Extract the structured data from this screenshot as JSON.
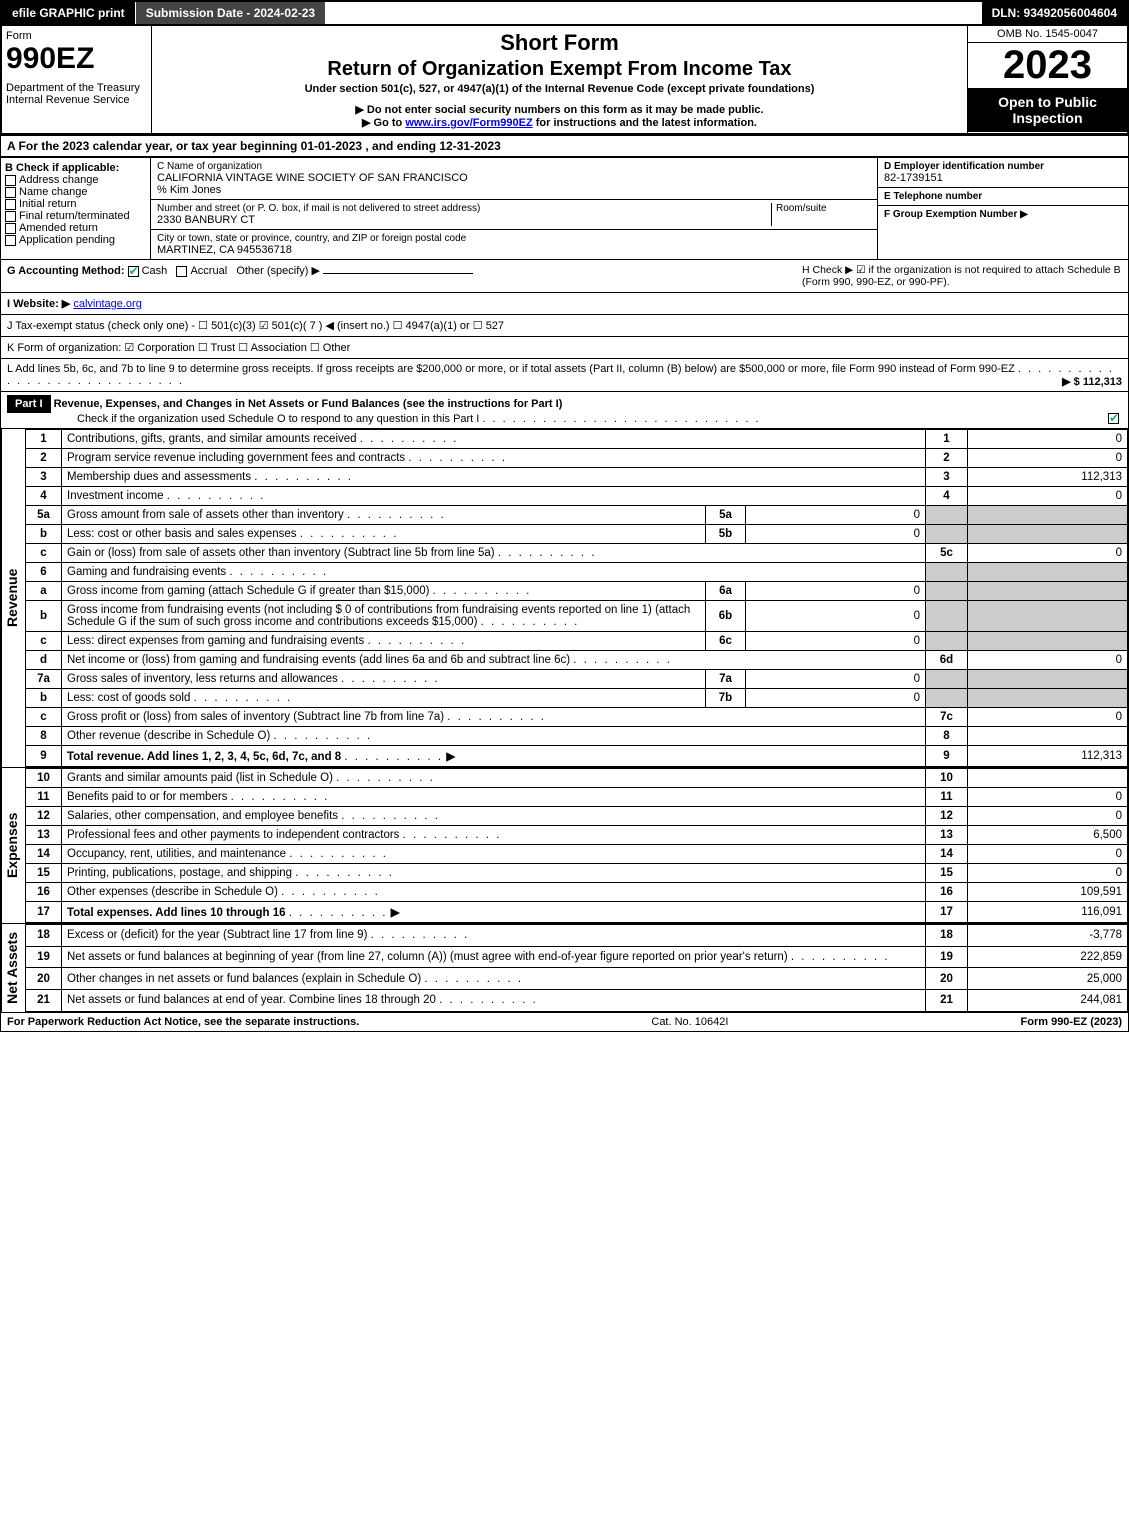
{
  "topbar": {
    "efile": "efile GRAPHIC print",
    "submission": "Submission Date - 2024-02-23",
    "dln": "DLN: 93492056004604"
  },
  "header": {
    "form_word": "Form",
    "form_num": "990EZ",
    "dept": "Department of the Treasury\nInternal Revenue Service",
    "title1": "Short Form",
    "title2": "Return of Organization Exempt From Income Tax",
    "subtitle": "Under section 501(c), 527, or 4947(a)(1) of the Internal Revenue Code (except private foundations)",
    "note1": "▶ Do not enter social security numbers on this form as it may be made public.",
    "note2_pre": "▶ Go to ",
    "note2_link": "www.irs.gov/Form990EZ",
    "note2_post": " for instructions and the latest information.",
    "omb": "OMB No. 1545-0047",
    "year": "2023",
    "open": "Open to Public Inspection"
  },
  "A": "A  For the 2023 calendar year, or tax year beginning 01-01-2023 , and ending 12-31-2023",
  "B": {
    "label": "B  Check if applicable:",
    "items": [
      "Address change",
      "Name change",
      "Initial return",
      "Final return/terminated",
      "Amended return",
      "Application pending"
    ]
  },
  "C": {
    "label": "C Name of organization",
    "name": "CALIFORNIA VINTAGE WINE SOCIETY OF SAN FRANCISCO",
    "care_of": "% Kim Jones",
    "street_label": "Number and street (or P. O. box, if mail is not delivered to street address)",
    "room_label": "Room/suite",
    "street": "2330 BANBURY CT",
    "city_label": "City or town, state or province, country, and ZIP or foreign postal code",
    "city": "MARTINEZ, CA  945536718"
  },
  "D": {
    "label": "D Employer identification number",
    "value": "82-1739151"
  },
  "E": {
    "label": "E Telephone number",
    "value": ""
  },
  "F": {
    "label": "F Group Exemption Number  ▶",
    "value": ""
  },
  "G": {
    "label": "G Accounting Method:",
    "cash": "Cash",
    "accrual": "Accrual",
    "other": "Other (specify) ▶"
  },
  "H": {
    "text": "H  Check ▶  ☑  if the organization is not required to attach Schedule B (Form 990, 990-EZ, or 990-PF)."
  },
  "I": {
    "label": "I Website: ▶",
    "value": "calvintage.org"
  },
  "J": "J Tax-exempt status (check only one) -  ☐ 501(c)(3)  ☑ 501(c)( 7 ) ◀ (insert no.)  ☐ 4947(a)(1) or  ☐ 527",
  "K": "K Form of organization:  ☑ Corporation  ☐ Trust  ☐ Association  ☐ Other",
  "L": {
    "text": "L Add lines 5b, 6c, and 7b to line 9 to determine gross receipts. If gross receipts are $200,000 or more, or if total assets (Part II, column (B) below) are $500,000 or more, file Form 990 instead of Form 990-EZ",
    "amount": "▶ $ 112,313"
  },
  "partI": {
    "label": "Part I",
    "title": "Revenue, Expenses, and Changes in Net Assets or Fund Balances (see the instructions for Part I)",
    "check_line": "Check if the organization used Schedule O to respond to any question in this Part I"
  },
  "revenue": {
    "side": "Revenue",
    "lines": [
      {
        "n": "1",
        "desc": "Contributions, gifts, grants, and similar amounts received",
        "col": "1",
        "val": "0"
      },
      {
        "n": "2",
        "desc": "Program service revenue including government fees and contracts",
        "col": "2",
        "val": "0"
      },
      {
        "n": "3",
        "desc": "Membership dues and assessments",
        "col": "3",
        "val": "112,313"
      },
      {
        "n": "4",
        "desc": "Investment income",
        "col": "4",
        "val": "0"
      },
      {
        "n": "5a",
        "desc": "Gross amount from sale of assets other than inventory",
        "sub": "5a",
        "subval": "0"
      },
      {
        "n": "b",
        "desc": "Less: cost or other basis and sales expenses",
        "sub": "5b",
        "subval": "0"
      },
      {
        "n": "c",
        "desc": "Gain or (loss) from sale of assets other than inventory (Subtract line 5b from line 5a)",
        "col": "5c",
        "val": "0"
      },
      {
        "n": "6",
        "desc": "Gaming and fundraising events"
      },
      {
        "n": "a",
        "desc": "Gross income from gaming (attach Schedule G if greater than $15,000)",
        "sub": "6a",
        "subval": "0"
      },
      {
        "n": "b",
        "desc": "Gross income from fundraising events (not including $  0   of contributions from fundraising events reported on line 1) (attach Schedule G if the sum of such gross income and contributions exceeds $15,000)",
        "sub": "6b",
        "subval": "0"
      },
      {
        "n": "c",
        "desc": "Less: direct expenses from gaming and fundraising events",
        "sub": "6c",
        "subval": "0"
      },
      {
        "n": "d",
        "desc": "Net income or (loss) from gaming and fundraising events (add lines 6a and 6b and subtract line 6c)",
        "col": "6d",
        "val": "0"
      },
      {
        "n": "7a",
        "desc": "Gross sales of inventory, less returns and allowances",
        "sub": "7a",
        "subval": "0"
      },
      {
        "n": "b",
        "desc": "Less: cost of goods sold",
        "sub": "7b",
        "subval": "0"
      },
      {
        "n": "c",
        "desc": "Gross profit or (loss) from sales of inventory (Subtract line 7b from line 7a)",
        "col": "7c",
        "val": "0"
      },
      {
        "n": "8",
        "desc": "Other revenue (describe in Schedule O)",
        "col": "8",
        "val": ""
      },
      {
        "n": "9",
        "desc": "Total revenue. Add lines 1, 2, 3, 4, 5c, 6d, 7c, and 8",
        "col": "9",
        "val": "112,313",
        "bold": true,
        "arrow": true
      }
    ]
  },
  "expenses": {
    "side": "Expenses",
    "lines": [
      {
        "n": "10",
        "desc": "Grants and similar amounts paid (list in Schedule O)",
        "col": "10",
        "val": ""
      },
      {
        "n": "11",
        "desc": "Benefits paid to or for members",
        "col": "11",
        "val": "0"
      },
      {
        "n": "12",
        "desc": "Salaries, other compensation, and employee benefits",
        "col": "12",
        "val": "0"
      },
      {
        "n": "13",
        "desc": "Professional fees and other payments to independent contractors",
        "col": "13",
        "val": "6,500"
      },
      {
        "n": "14",
        "desc": "Occupancy, rent, utilities, and maintenance",
        "col": "14",
        "val": "0"
      },
      {
        "n": "15",
        "desc": "Printing, publications, postage, and shipping",
        "col": "15",
        "val": "0"
      },
      {
        "n": "16",
        "desc": "Other expenses (describe in Schedule O)",
        "col": "16",
        "val": "109,591"
      },
      {
        "n": "17",
        "desc": "Total expenses. Add lines 10 through 16",
        "col": "17",
        "val": "116,091",
        "bold": true,
        "arrow": true
      }
    ]
  },
  "netassets": {
    "side": "Net Assets",
    "lines": [
      {
        "n": "18",
        "desc": "Excess or (deficit) for the year (Subtract line 17 from line 9)",
        "col": "18",
        "val": "-3,778"
      },
      {
        "n": "19",
        "desc": "Net assets or fund balances at beginning of year (from line 27, column (A)) (must agree with end-of-year figure reported on prior year's return)",
        "col": "19",
        "val": "222,859"
      },
      {
        "n": "20",
        "desc": "Other changes in net assets or fund balances (explain in Schedule O)",
        "col": "20",
        "val": "25,000"
      },
      {
        "n": "21",
        "desc": "Net assets or fund balances at end of year. Combine lines 18 through 20",
        "col": "21",
        "val": "244,081"
      }
    ]
  },
  "footer": {
    "left": "For Paperwork Reduction Act Notice, see the separate instructions.",
    "mid": "Cat. No. 10642I",
    "right": "Form 990-EZ (2023)"
  },
  "colors": {
    "black": "#000000",
    "white": "#ffffff",
    "grey": "#cccccc",
    "darkgrey": "#444444",
    "link": "#0000ee",
    "check": "#22aa77"
  }
}
